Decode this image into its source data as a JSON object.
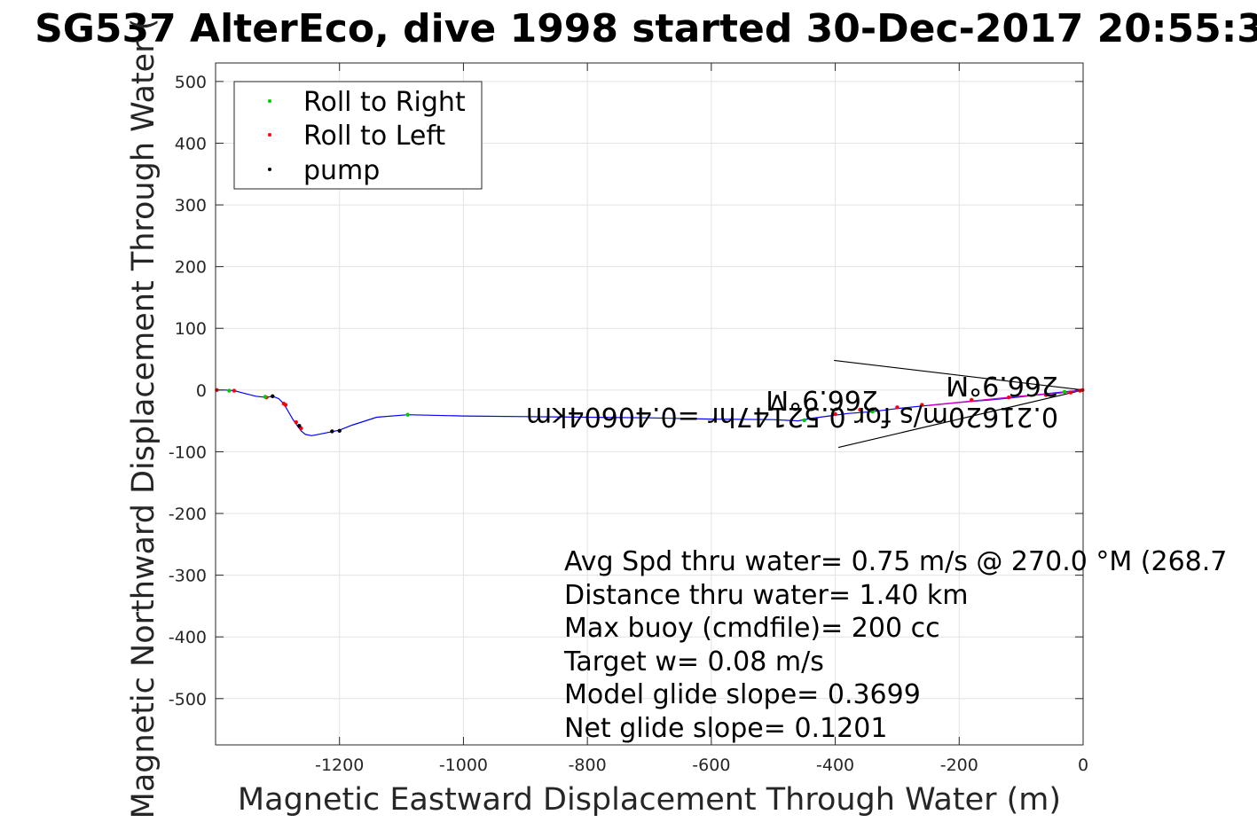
{
  "chart_data": {
    "type": "line",
    "title": "SG537 AlterEco, dive 1998 started 30-Dec-2017 20:55:3",
    "xlabel": "Magnetic Eastward Displacement Through Water (m)",
    "ylabel": "Magnetic Northward Displacement Through Water (",
    "xlim": [
      -1400,
      0
    ],
    "ylim": [
      -575,
      530
    ],
    "xticks": [
      -1200,
      -1000,
      -800,
      -600,
      -400,
      -200,
      0
    ],
    "yticks": [
      500,
      400,
      300,
      200,
      100,
      0,
      -100,
      -200,
      -300,
      -400,
      -500
    ],
    "grid": true,
    "legend_position": "top-left",
    "legend": [
      {
        "label": "Roll to Right",
        "color": "#00cc00"
      },
      {
        "label": "Roll to Left",
        "color": "#ff0000"
      },
      {
        "label": "pump",
        "color": "#000000"
      }
    ],
    "series": [
      {
        "name": "track",
        "color": "#0000ff",
        "x": [
          0,
          -10,
          -30,
          -60,
          -100,
          -150,
          -200,
          -250,
          -300,
          -340,
          -380,
          -410,
          -440,
          -460,
          -500,
          -600,
          -700,
          -800,
          -900,
          -1000,
          -1090,
          -1140,
          -1180,
          -1200,
          -1215,
          -1230,
          -1245,
          -1255,
          -1262,
          -1268,
          -1275,
          -1283,
          -1290,
          -1298,
          -1308,
          -1318,
          -1335,
          -1355,
          -1370,
          -1385,
          -1400
        ],
        "y": [
          0,
          -1,
          -3,
          -6,
          -11,
          -16,
          -20,
          -25,
          -30,
          -35,
          -38,
          -42,
          -46,
          -50,
          -48,
          -47,
          -45,
          -44,
          -43,
          -42,
          -40,
          -44,
          -57,
          -65,
          -68,
          -71,
          -74,
          -72,
          -66,
          -58,
          -48,
          -34,
          -22,
          -14,
          -10,
          -12,
          -10,
          -5,
          -1,
          0,
          0
        ]
      }
    ],
    "roll_to_right": [
      {
        "x": -1090,
        "y": -40
      },
      {
        "x": -450,
        "y": -49
      },
      {
        "x": -340,
        "y": -35
      },
      {
        "x": -1378,
        "y": -1
      },
      {
        "x": -1320,
        "y": -11
      },
      {
        "x": -30,
        "y": -3
      }
    ],
    "roll_to_left": [
      {
        "x": -1398,
        "y": 0
      },
      {
        "x": -1370,
        "y": -1
      },
      {
        "x": -1318,
        "y": -12
      },
      {
        "x": -1290,
        "y": -22
      },
      {
        "x": -1287,
        "y": -24
      },
      {
        "x": -1270,
        "y": -52
      },
      {
        "x": -1262,
        "y": -62
      },
      {
        "x": -400,
        "y": -39
      },
      {
        "x": -360,
        "y": -32
      },
      {
        "x": -300,
        "y": -28
      },
      {
        "x": -260,
        "y": -24
      },
      {
        "x": -180,
        "y": -16
      },
      {
        "x": -120,
        "y": -12
      },
      {
        "x": -60,
        "y": -8
      },
      {
        "x": -20,
        "y": -4
      },
      {
        "x": -5,
        "y": -1
      },
      {
        "x": -1,
        "y": 0
      }
    ],
    "pump": [
      {
        "x": -1308,
        "y": -10
      },
      {
        "x": -1265,
        "y": -58
      },
      {
        "x": -1212,
        "y": -67
      },
      {
        "x": -1200,
        "y": -66
      }
    ],
    "arrow_lines": [
      {
        "x": [
          0,
          -402
        ],
        "y": [
          0,
          48
        ]
      },
      {
        "x": [
          0,
          -395
        ],
        "y": [
          0,
          -93
        ]
      }
    ],
    "flipped_labels": [
      "0.21620m/s for 0.52147hr =0.40604km",
      "266.9°M",
      "266.9°M"
    ],
    "annotations": [
      "Avg Spd thru water=  0.75 m/s @ 270.0 °M (268.7",
      "Distance thru water=  1.40 km",
      "Max buoy (cmdfile)= 200 cc",
      "Target w= 0.08 m/s",
      "Model glide slope= 0.3699",
      "Net glide slope= 0.1201"
    ]
  }
}
